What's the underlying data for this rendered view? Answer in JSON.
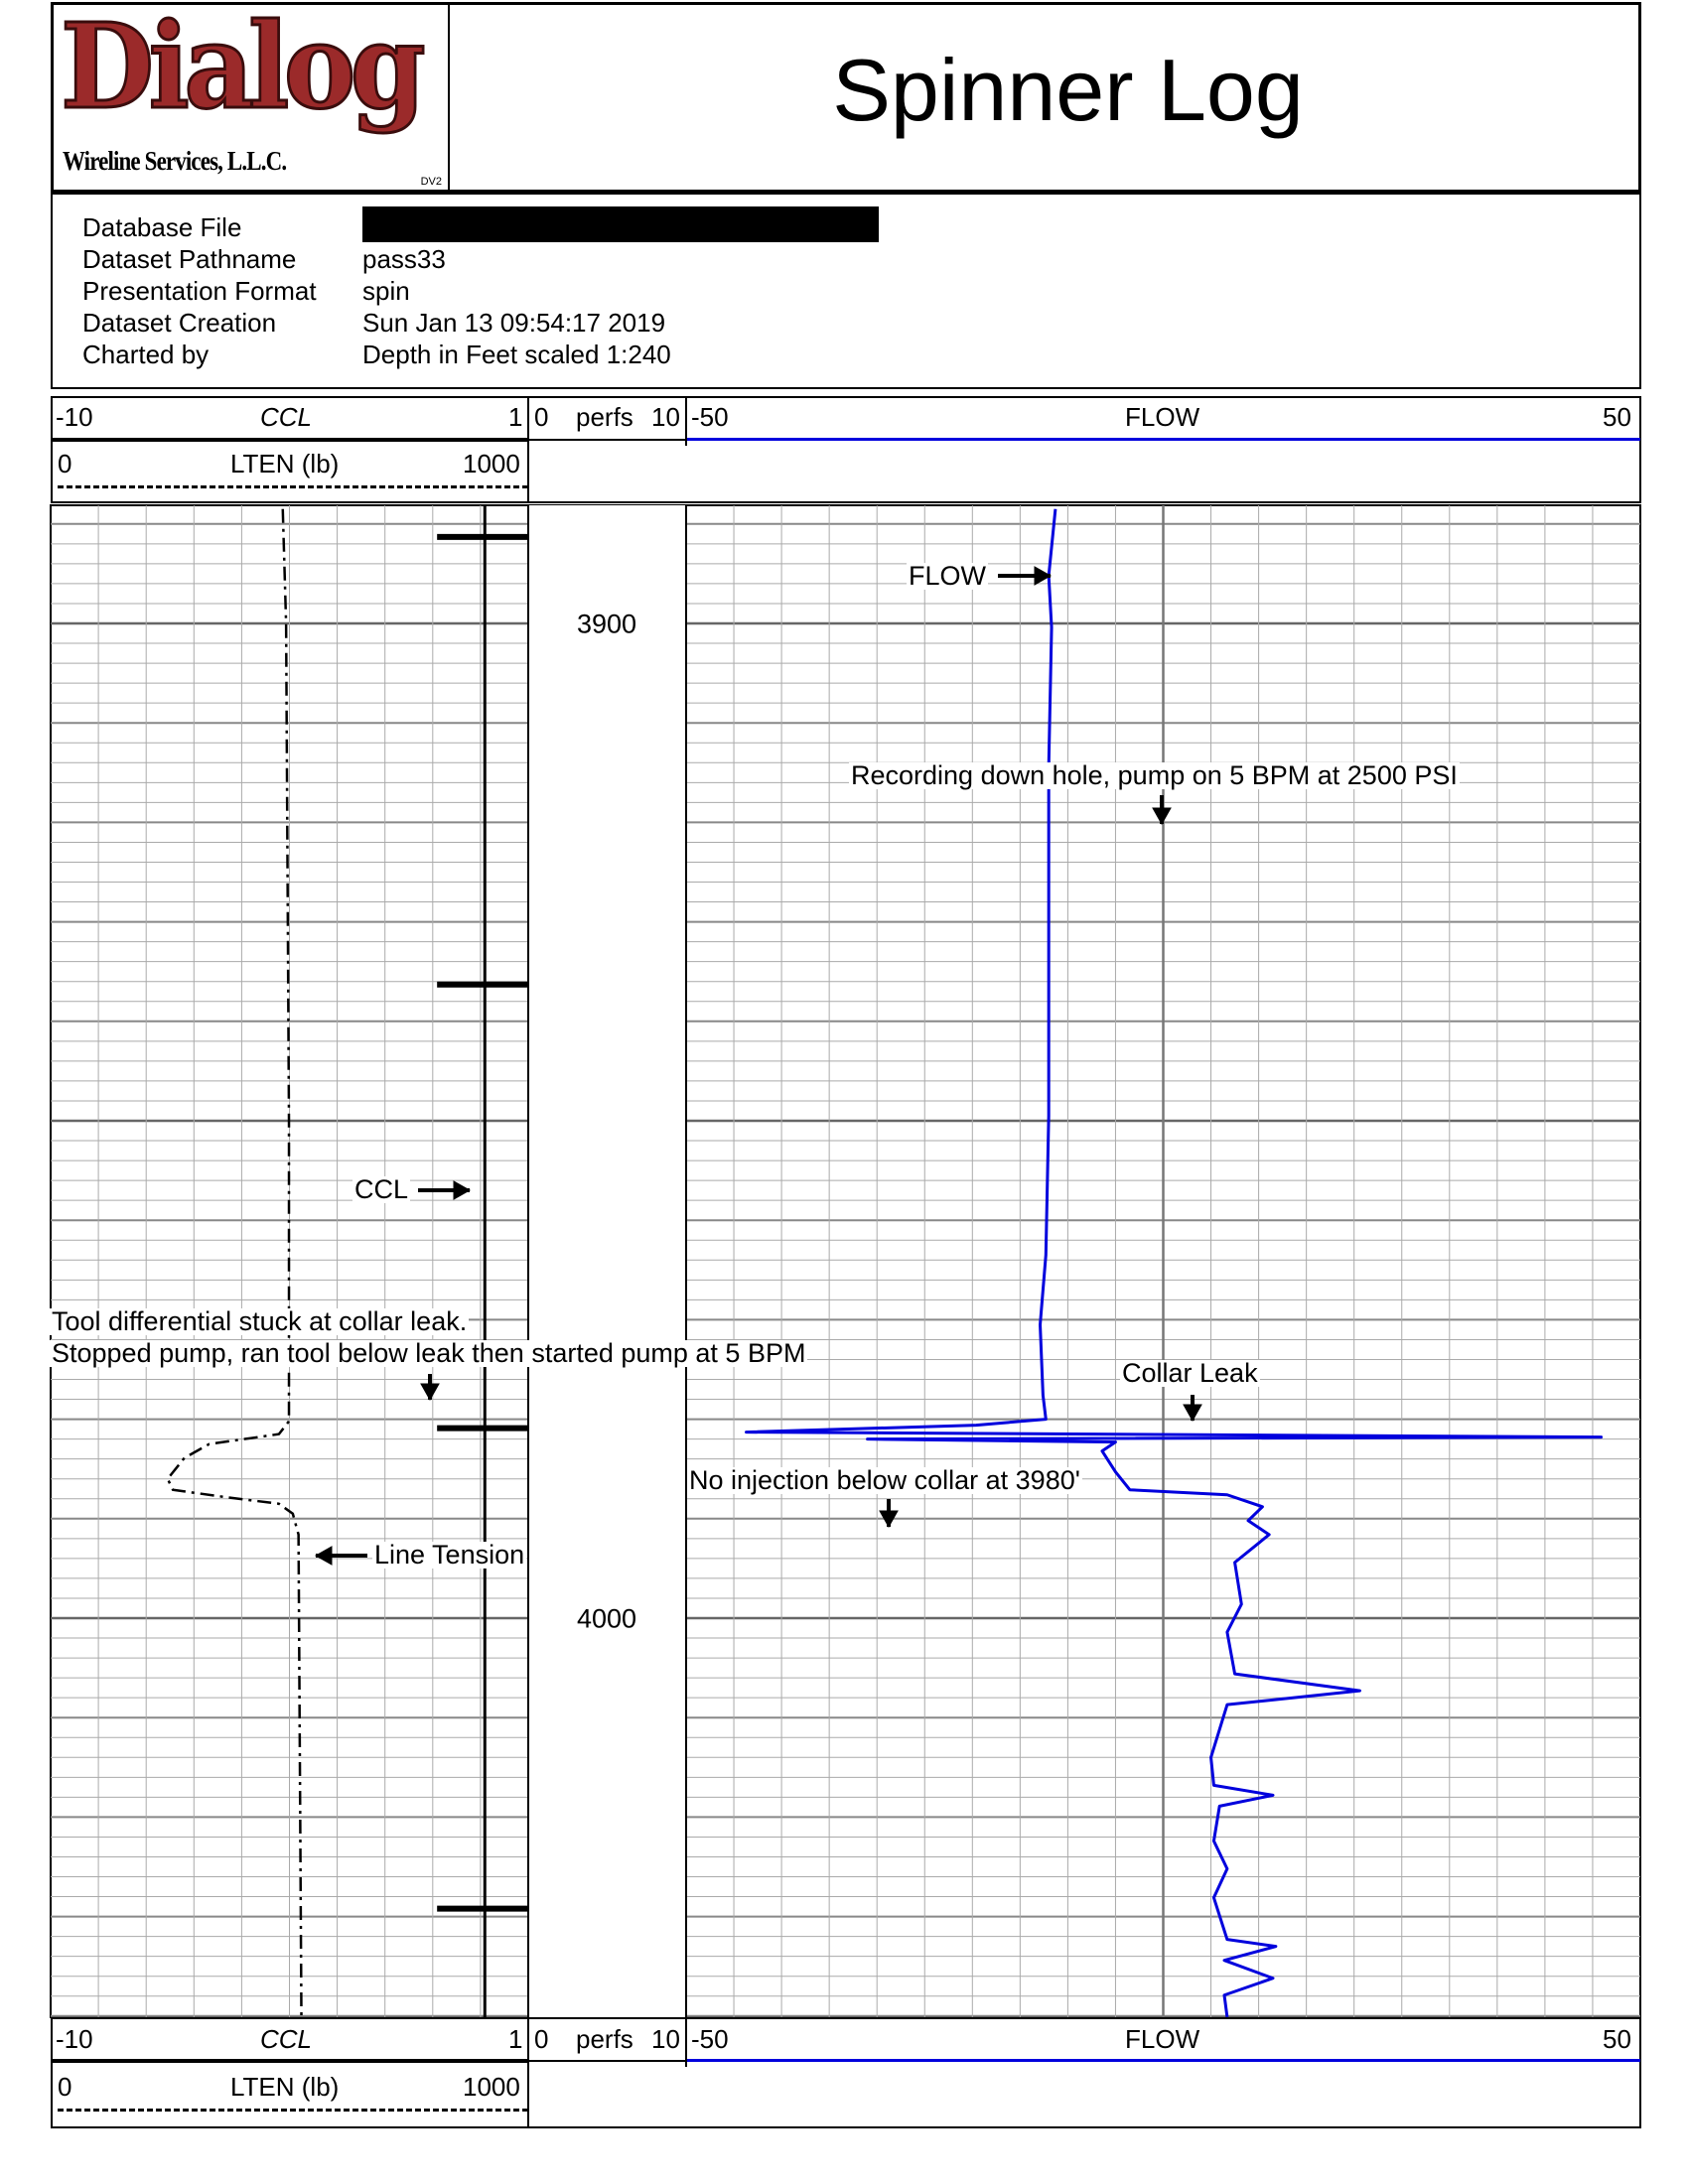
{
  "logo": {
    "brand": "Dialog",
    "subtitle": "Wireline Services, L.L.C.",
    "mark": "DV2",
    "brand_color": "#9b2a2a"
  },
  "header": {
    "title": "Spinner Log"
  },
  "info": {
    "rows": [
      {
        "label": "Database File",
        "value": ""
      },
      {
        "label": "Dataset Pathname",
        "value": "pass33"
      },
      {
        "label": "Presentation Format",
        "value": "spin"
      },
      {
        "label": "Dataset Creation",
        "value": "Sun Jan 13 09:54:17 2019"
      },
      {
        "label": "Charted by",
        "value": "Depth in Feet scaled 1:240"
      }
    ],
    "redacted": true
  },
  "scales": {
    "ccl": {
      "min": "-10",
      "name": "CCL",
      "max": "1"
    },
    "perfs": {
      "min": "0",
      "name": "perfs",
      "max": "10"
    },
    "flow": {
      "min": "-50",
      "name": "FLOW",
      "max": "50",
      "color": "#0000dd"
    },
    "lten": {
      "min": "0",
      "name": "LTEN (lb)",
      "max": "1000"
    }
  },
  "depth_labels": [
    "3900",
    "4000"
  ],
  "annotations": {
    "flow": "FLOW",
    "recording": "Recording down hole, pump on 5 BPM at 2500 PSI",
    "ccl": "CCL",
    "stuck_line1": "Tool differential stuck at collar leak.",
    "stuck_line2": "Stopped pump, ran tool below leak then started pump at 5 BPM",
    "collar_leak": "Collar Leak",
    "no_injection": "No injection below collar at 3980'",
    "line_tension": "Line Tension"
  },
  "chart_data": {
    "type": "line",
    "depth_unit": "ft",
    "depth_range": [
      3888,
      4040
    ],
    "tracks": [
      {
        "name": "CCL",
        "range": [
          -10,
          1
        ],
        "style": "solid black",
        "baseline": 0,
        "collar_depths": [
          3891.3,
          3936.3,
          3980.9,
          4029.2
        ],
        "collar_peak": -1.1
      },
      {
        "name": "LTEN (lb)",
        "range": [
          0,
          1000
        ],
        "style": "dashed black",
        "points": [
          [
            3888.5,
            486
          ],
          [
            3900,
            493
          ],
          [
            3950,
            499
          ],
          [
            3980.2,
            499
          ],
          [
            3981.5,
            478
          ],
          [
            3982.5,
            332
          ],
          [
            3983.9,
            280
          ],
          [
            3986.0,
            245
          ],
          [
            3987.1,
            256
          ],
          [
            3987.8,
            361
          ],
          [
            3988.5,
            478
          ],
          [
            3989.5,
            507
          ],
          [
            3991.6,
            519
          ],
          [
            4040.1,
            525
          ]
        ]
      },
      {
        "name": "FLOW",
        "range": [
          -50,
          50
        ],
        "style": "solid blue",
        "points": [
          [
            3888.5,
            -11.3
          ],
          [
            3895.2,
            -12.0
          ],
          [
            3900.4,
            -11.7
          ],
          [
            3914.4,
            -12.0
          ],
          [
            3935.5,
            -12.0
          ],
          [
            3949.5,
            -12.0
          ],
          [
            3963.5,
            -12.3
          ],
          [
            3970.5,
            -12.9
          ],
          [
            3977.6,
            -12.6
          ],
          [
            3980.0,
            -12.3
          ],
          [
            3980.6,
            -19.6
          ],
          [
            3981.3,
            -43.7
          ],
          [
            3981.5,
            -7.0
          ],
          [
            3981.8,
            45.9
          ],
          [
            3982.0,
            -31.0
          ],
          [
            3982.3,
            -5.0
          ],
          [
            3983.2,
            -6.4
          ],
          [
            3985.3,
            -5.0
          ],
          [
            3987.1,
            -3.5
          ],
          [
            3987.6,
            6.7
          ],
          [
            3988.8,
            10.4
          ],
          [
            3990.2,
            8.9
          ],
          [
            3991.6,
            11.1
          ],
          [
            3994.4,
            7.5
          ],
          [
            3998.6,
            8.2
          ],
          [
            4001.4,
            6.7
          ],
          [
            4005.6,
            7.5
          ],
          [
            4007.3,
            20.6
          ],
          [
            4008.7,
            6.7
          ],
          [
            4014.0,
            5.0
          ],
          [
            4016.8,
            5.3
          ],
          [
            4017.8,
            11.5
          ],
          [
            4018.9,
            5.9
          ],
          [
            4022.4,
            5.3
          ],
          [
            4025.2,
            6.7
          ],
          [
            4028.1,
            5.3
          ],
          [
            4032.3,
            6.7
          ],
          [
            4033.0,
            11.8
          ],
          [
            4034.4,
            6.4
          ],
          [
            4036.2,
            11.5
          ],
          [
            4037.9,
            6.4
          ],
          [
            4040.1,
            6.7
          ]
        ]
      }
    ],
    "grid": true
  }
}
